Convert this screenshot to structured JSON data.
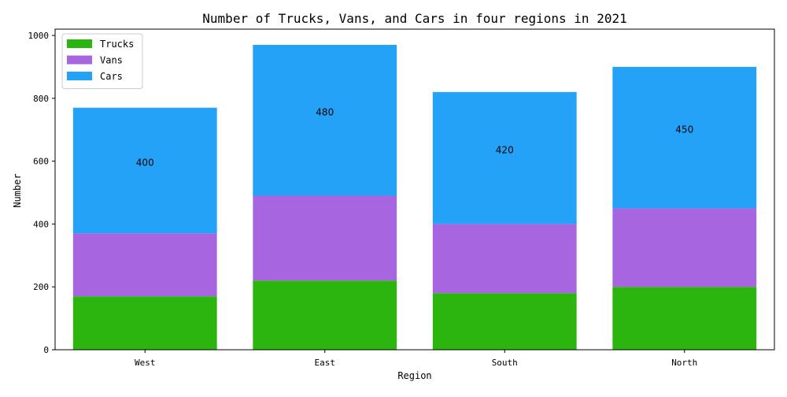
{
  "chart_data": {
    "type": "bar",
    "stacked": true,
    "title": "Number of Trucks, Vans, and Cars in four regions in 2021",
    "xlabel": "Region",
    "ylabel": "Number",
    "categories": [
      "West",
      "East",
      "South",
      "North"
    ],
    "series": [
      {
        "name": "Trucks",
        "values": [
          170,
          220,
          180,
          200
        ],
        "color": "#2cb50e"
      },
      {
        "name": "Vans",
        "values": [
          200,
          270,
          220,
          250
        ],
        "color": "#a766e0"
      },
      {
        "name": "Cars",
        "values": [
          400,
          480,
          420,
          450
        ],
        "color": "#23a2f7"
      }
    ],
    "data_labels": {
      "series": "Cars",
      "values": [
        "400",
        "480",
        "420",
        "450"
      ]
    },
    "ylim": [
      0,
      1020
    ],
    "yticks": [
      0,
      200,
      400,
      600,
      800,
      1000
    ],
    "grid": false,
    "legend_position": "top-left"
  }
}
